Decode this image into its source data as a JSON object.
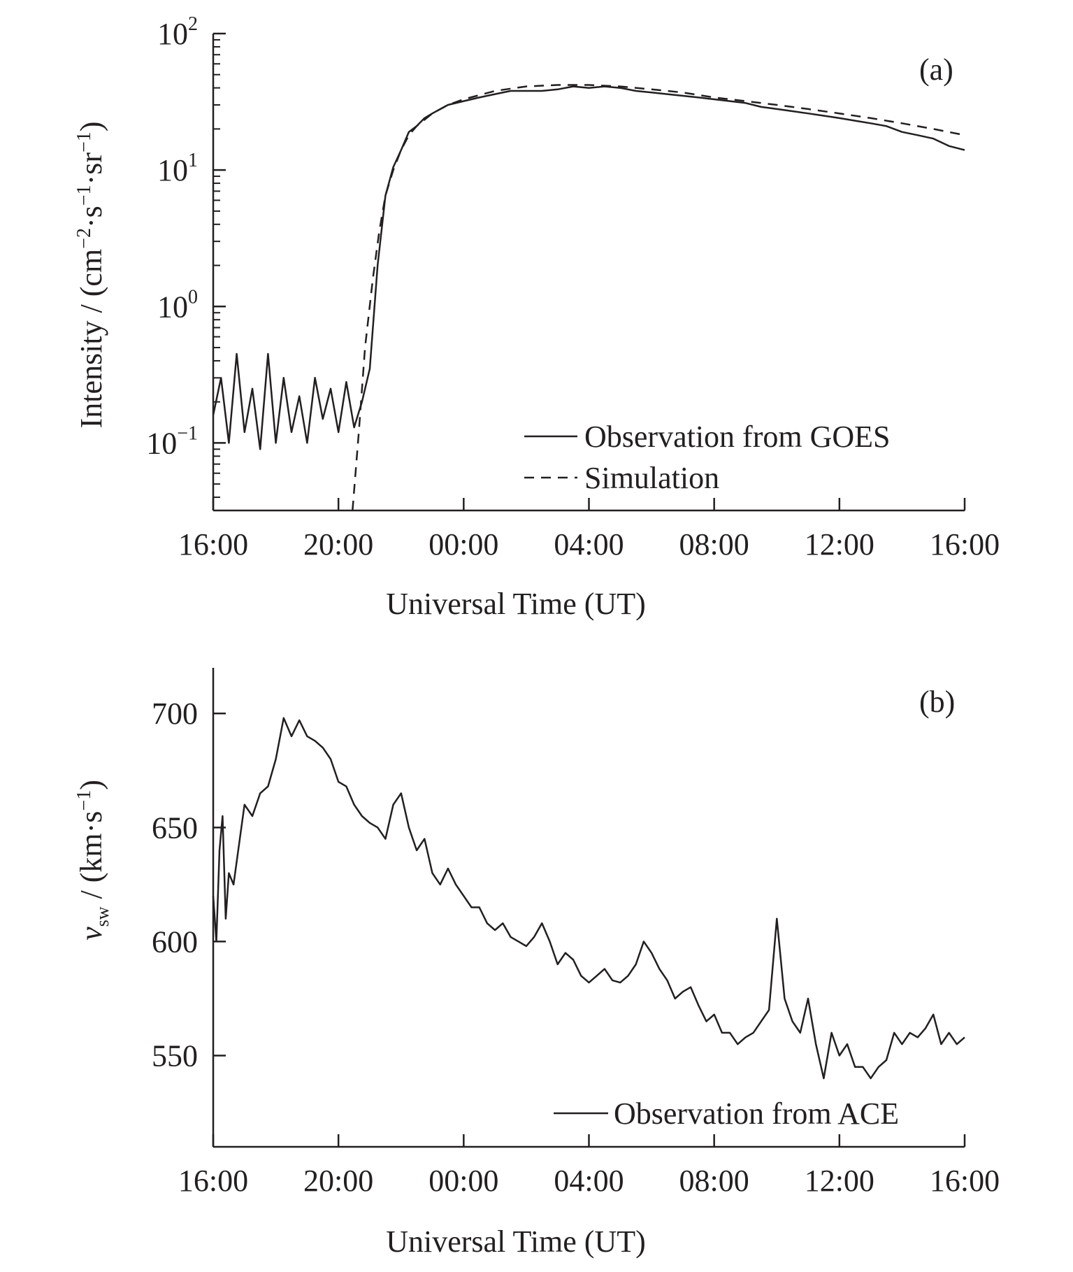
{
  "figure": {
    "panels": [
      "(a)",
      "(b)"
    ]
  },
  "colors": {
    "ink": "#231f20",
    "background": "#ffffff"
  },
  "chart_data": [
    {
      "type": "line",
      "panel": "(a)",
      "xlabel": "Universal Time (UT)",
      "ylabel": {
        "prefix": "Intensity / (cm",
        "sup1": "−2",
        "mid1": "·s",
        "sup2": "−1",
        "mid2": "·sr",
        "sup3": "−1",
        "suffix": ")"
      },
      "y_scale": "log",
      "ylim": [
        0.032,
        100
      ],
      "xlim_hours": [
        0,
        48
      ],
      "x_tick_labels": [
        "16:00",
        "20:00",
        "00:00",
        "04:00",
        "08:00",
        "12:00",
        "16:00"
      ],
      "x_tick_hours": [
        0,
        8,
        16,
        24,
        32,
        40,
        48
      ],
      "y_ticks": [
        {
          "value": 100,
          "base": "10",
          "exp": "2"
        },
        {
          "value": 10,
          "base": "10",
          "exp": "1"
        },
        {
          "value": 1,
          "base": "10",
          "exp": "0"
        },
        {
          "value": 0.1,
          "base": "10",
          "exp": "−1"
        }
      ],
      "x_unit": "hours after 16:00 UT on the first day",
      "legend": {
        "placement": "bottom-right"
      },
      "series": [
        {
          "name": "Observation from GOES",
          "style": "solid",
          "x": [
            0,
            0.5,
            1,
            1.5,
            2,
            2.5,
            3,
            3.5,
            4,
            4.5,
            5,
            5.5,
            6,
            6.5,
            7,
            7.5,
            8,
            8.5,
            9,
            9.5,
            10,
            10.5,
            11,
            11.5,
            12,
            12.5,
            13,
            13.5,
            14,
            15,
            16,
            17,
            18,
            19,
            20,
            21,
            22,
            23,
            24,
            25,
            26,
            27,
            28,
            29,
            30,
            31,
            32,
            33,
            34,
            35,
            36,
            37,
            38,
            39,
            40,
            41,
            42,
            43,
            44,
            45,
            46,
            47,
            48
          ],
          "y": [
            0.16,
            0.3,
            0.1,
            0.45,
            0.12,
            0.25,
            0.09,
            0.45,
            0.1,
            0.3,
            0.12,
            0.22,
            0.1,
            0.3,
            0.15,
            0.25,
            0.12,
            0.28,
            0.13,
            0.2,
            0.35,
            2.0,
            6.5,
            10.5,
            14,
            19,
            21,
            24,
            26,
            30,
            32,
            34,
            36,
            38,
            38,
            38,
            39,
            41,
            40,
            41,
            40,
            38,
            37,
            36,
            35,
            34,
            33,
            32,
            31,
            29,
            28,
            27,
            26,
            25,
            24,
            23,
            22,
            21,
            19,
            18,
            17,
            15,
            14
          ]
        },
        {
          "name": "Simulation",
          "style": "dashed",
          "x": [
            8.9,
            9.3,
            9.7,
            10.2,
            10.6,
            11,
            11.5,
            12,
            12.5,
            13,
            14,
            15,
            16,
            18,
            20,
            22,
            24,
            26,
            28,
            30,
            32,
            34,
            36,
            38,
            40,
            42,
            44,
            46,
            48
          ],
          "y": [
            0.032,
            0.12,
            0.5,
            1.6,
            3.5,
            6.5,
            10,
            14,
            18,
            21,
            26,
            30,
            33,
            38,
            41,
            42,
            42,
            41,
            39,
            37,
            34,
            32,
            30,
            28,
            26,
            24,
            22,
            20,
            18
          ]
        }
      ]
    },
    {
      "type": "line",
      "panel": "(b)",
      "xlabel": "Universal Time (UT)",
      "ylabel": {
        "var": "v",
        "sub": "sw",
        "prefix": " / (km·s",
        "sup": "−1",
        "suffix": ")"
      },
      "ylim": [
        510,
        720
      ],
      "xlim_hours": [
        0,
        48
      ],
      "x_tick_labels": [
        "16:00",
        "20:00",
        "00:00",
        "04:00",
        "08:00",
        "12:00",
        "16:00"
      ],
      "x_tick_hours": [
        0,
        8,
        16,
        24,
        32,
        40,
        48
      ],
      "y_ticks": [
        550,
        600,
        650,
        700
      ],
      "x_unit": "hours after 16:00 UT on the first day",
      "legend": {
        "placement": "bottom-right"
      },
      "series": [
        {
          "name": "Observation from ACE",
          "style": "solid",
          "x": [
            0,
            0.2,
            0.4,
            0.6,
            0.8,
            1,
            1.3,
            1.6,
            2,
            2.5,
            3,
            3.5,
            4,
            4.5,
            5,
            5.5,
            6,
            6.5,
            7,
            7.5,
            8,
            8.5,
            9,
            9.5,
            10,
            10.5,
            11,
            11.5,
            12,
            12.5,
            13,
            13.5,
            14,
            14.5,
            15,
            15.5,
            16,
            16.5,
            17,
            17.5,
            18,
            18.5,
            19,
            19.5,
            20,
            20.5,
            21,
            21.5,
            22,
            22.5,
            23,
            23.5,
            24,
            24.5,
            25,
            25.5,
            26,
            26.5,
            27,
            27.5,
            28,
            28.5,
            29,
            29.5,
            30,
            30.5,
            31,
            31.5,
            32,
            32.5,
            33,
            33.5,
            34,
            34.5,
            35,
            35.5,
            36,
            36.5,
            37,
            37.5,
            38,
            38.5,
            39,
            39.5,
            40,
            40.5,
            41,
            41.5,
            42,
            42.5,
            43,
            43.5,
            44,
            44.5,
            45,
            45.5,
            46,
            46.5,
            47,
            47.5,
            48
          ],
          "y": [
            620,
            600,
            640,
            655,
            610,
            630,
            625,
            640,
            660,
            655,
            665,
            668,
            680,
            698,
            690,
            697,
            690,
            688,
            685,
            680,
            670,
            668,
            660,
            655,
            652,
            650,
            645,
            660,
            665,
            650,
            640,
            645,
            630,
            625,
            632,
            625,
            620,
            615,
            615,
            608,
            605,
            608,
            602,
            600,
            598,
            602,
            608,
            600,
            590,
            595,
            592,
            585,
            582,
            585,
            588,
            583,
            582,
            585,
            590,
            600,
            595,
            588,
            583,
            575,
            578,
            580,
            572,
            565,
            568,
            560,
            560,
            555,
            558,
            560,
            565,
            570,
            610,
            575,
            565,
            560,
            575,
            555,
            540,
            560,
            550,
            555,
            545,
            545,
            540,
            545,
            548,
            560,
            555,
            560,
            558,
            562,
            568,
            555,
            560,
            555,
            558
          ]
        }
      ]
    }
  ]
}
